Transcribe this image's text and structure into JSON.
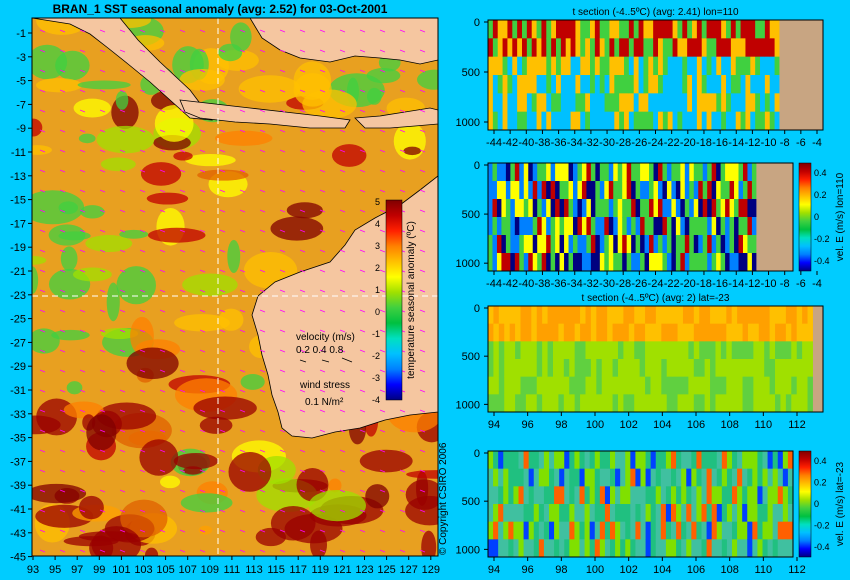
{
  "main_map": {
    "title": "BRAN_1  SST seasonal anomaly  (avg: 2.52) for 03-Oct-2001",
    "lat_ticks": [
      "-1",
      "-3",
      "-5",
      "-7",
      "-9",
      "-11",
      "-13",
      "-15",
      "-17",
      "-19",
      "-21",
      "-23",
      "-25",
      "-27",
      "-29",
      "-31",
      "-33",
      "-35",
      "-37",
      "-39",
      "-41",
      "-43",
      "-45"
    ],
    "lon_ticks": [
      "93",
      "95",
      "97",
      "99",
      "101",
      "103",
      "105",
      "107",
      "109",
      "111",
      "113",
      "115",
      "117",
      "119",
      "121",
      "123",
      "125",
      "127",
      "129"
    ],
    "colorbar_label": "temperature seasonal anomaly (ºC)",
    "colorbar_ticks": [
      "5",
      "4",
      "3",
      "2",
      "1",
      "0",
      "-1",
      "-2",
      "-3",
      "-4"
    ],
    "velocity_label": "velocity (m/s)",
    "velocity_scale": "0.2 0.4 0.8",
    "wind_label": "wind stress",
    "wind_scale": "0.1 N/m²",
    "copyright": "© Copyright CSIRO 2006"
  },
  "chart_data": [
    {
      "type": "heatmap",
      "title": "BRAN_1  SST seasonal anomaly  (avg: 2.52) for 03-Oct-2001",
      "x_ticks": [
        "93",
        "95",
        "97",
        "99",
        "101",
        "103",
        "105",
        "107",
        "109",
        "111",
        "113",
        "115",
        "117",
        "119",
        "121",
        "123",
        "125",
        "127",
        "129"
      ],
      "y_ticks": [
        "-1",
        "-3",
        "-5",
        "-7",
        "-9",
        "-11",
        "-13",
        "-15",
        "-17",
        "-19",
        "-21",
        "-23",
        "-25",
        "-27",
        "-29",
        "-31",
        "-33",
        "-35",
        "-37",
        "-39",
        "-41",
        "-43",
        "-45"
      ],
      "colorbar_ticks": [
        5,
        4,
        3,
        2,
        1,
        0,
        -1,
        -2,
        -3,
        -4
      ],
      "colorbar_label": "temperature seasonal anomaly (ºC)",
      "average": 2.52,
      "date": "03-Oct-2001",
      "crosshair": {
        "lon": 110,
        "lat": -23
      }
    },
    {
      "type": "heatmap",
      "title": "t section (-4..5ºC) (avg: 2.41) lon=110",
      "x_ticks": [
        "-44",
        "-42",
        "-40",
        "-38",
        "-36",
        "-34",
        "-32",
        "-30",
        "-28",
        "-26",
        "-24",
        "-22",
        "-20",
        "-18",
        "-16",
        "-14",
        "-12",
        "-10",
        "-8",
        "-6",
        "-4"
      ],
      "y_ticks": [
        "0",
        "500",
        "1000"
      ],
      "range": [
        -4,
        5
      ],
      "average": 2.41
    },
    {
      "type": "heatmap",
      "title": "",
      "x_ticks": [
        "-44",
        "-42",
        "-40",
        "-38",
        "-36",
        "-34",
        "-32",
        "-30",
        "-28",
        "-26",
        "-24",
        "-22",
        "-20",
        "-18",
        "-16",
        "-14",
        "-12",
        "-10",
        "-8",
        "-6",
        "-4"
      ],
      "y_ticks": [
        "0",
        "500",
        "1000"
      ],
      "colorbar_ticks": [
        "0.4",
        "0.2",
        "0",
        "-0.2",
        "-0.4"
      ],
      "colorbar_label": "vel. E (m/s) lon=110"
    },
    {
      "type": "heatmap",
      "title": "t section (-4..5ºC) (avg: 2) lat=-23",
      "x_ticks": [
        "94",
        "96",
        "98",
        "100",
        "102",
        "104",
        "106",
        "108",
        "110",
        "112"
      ],
      "y_ticks": [
        "0",
        "500",
        "1000"
      ],
      "range": [
        -4,
        5
      ],
      "average": 2
    },
    {
      "type": "heatmap",
      "title": "",
      "x_ticks": [
        "94",
        "96",
        "98",
        "100",
        "102",
        "104",
        "106",
        "108",
        "110",
        "112"
      ],
      "y_ticks": [
        "0",
        "500",
        "1000"
      ],
      "colorbar_ticks": [
        "0.4",
        "0.2",
        "0",
        "-0.2",
        "-0.4"
      ],
      "colorbar_label": "vel. E (m/s) lat=-23"
    }
  ],
  "sections": [
    {
      "title": "t section (-4..5ºC) (avg: 2.41) lon=110",
      "x_ticks": [
        "-44",
        "-42",
        "-40",
        "-38",
        "-36",
        "-34",
        "-32",
        "-30",
        "-28",
        "-26",
        "-24",
        "-22",
        "-20",
        "-18",
        "-16",
        "-14",
        "-12",
        "-10",
        "-8",
        "-6",
        "-4"
      ],
      "y_ticks": [
        "0",
        "500",
        "1000"
      ]
    },
    {
      "title": "",
      "x_ticks": [
        "-44",
        "-42",
        "-40",
        "-38",
        "-36",
        "-34",
        "-32",
        "-30",
        "-28",
        "-26",
        "-24",
        "-22",
        "-20",
        "-18",
        "-16",
        "-14",
        "-12",
        "-10",
        "-8",
        "-6",
        "-4"
      ],
      "y_ticks": [
        "0",
        "500",
        "1000"
      ],
      "cb_ticks": [
        "0.4",
        "0.2",
        "0",
        "-0.2",
        "-0.4"
      ],
      "cb_label": "vel. E (m/s) lon=110"
    },
    {
      "title": "t section (-4..5ºC) (avg: 2) lat=-23",
      "x_ticks": [
        "94",
        "96",
        "98",
        "100",
        "102",
        "104",
        "106",
        "108",
        "110",
        "112"
      ],
      "y_ticks": [
        "0",
        "500",
        "1000"
      ]
    },
    {
      "title": "",
      "x_ticks": [
        "94",
        "96",
        "98",
        "100",
        "102",
        "104",
        "106",
        "108",
        "110",
        "112"
      ],
      "y_ticks": [
        "0",
        "500",
        "1000"
      ],
      "cb_ticks": [
        "0.4",
        "0.2",
        "0",
        "-0.2",
        "-0.4"
      ],
      "cb_label": "vel. E (m/s) lat=-23"
    }
  ],
  "colors": {
    "background": "#00ccff",
    "land": "#f5c6a0",
    "section_land": "#c8a582",
    "scale": [
      "#000080",
      "#0000ff",
      "#0080ff",
      "#00c0ff",
      "#00e0c0",
      "#00c040",
      "#40d040",
      "#a0e000",
      "#ffff00",
      "#ffc000",
      "#ff8000",
      "#ff2000",
      "#c00000",
      "#800000"
    ]
  }
}
